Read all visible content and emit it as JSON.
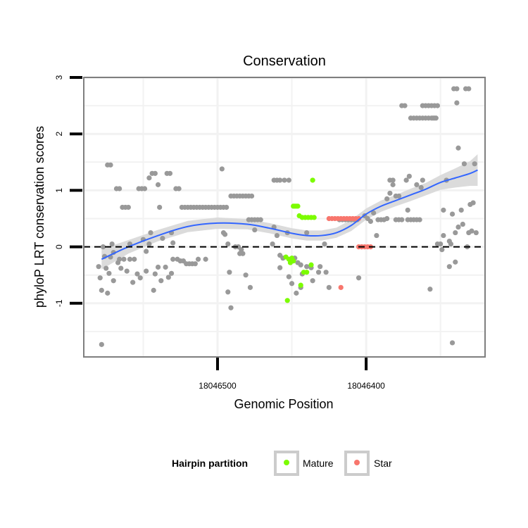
{
  "chart_data": {
    "type": "scatter",
    "title": "Conservation",
    "xlabel": "Genomic Position",
    "ylabel": "phyloP LRT conservation scores",
    "x_reversed": true,
    "xlim": [
      18046590,
      18046320
    ],
    "ylim": [
      -1.95,
      3.0
    ],
    "xticks": [
      {
        "value": 18046500,
        "label": "18046500"
      },
      {
        "value": 18046400,
        "label": "18046400"
      }
    ],
    "yticks": [
      {
        "value": -1,
        "label": "-1"
      },
      {
        "value": 0,
        "label": "0"
      },
      {
        "value": 1,
        "label": "1"
      },
      {
        "value": 2,
        "label": "2"
      },
      {
        "value": 3,
        "label": "3"
      }
    ],
    "reference_line": {
      "y": 0,
      "style": "dashed"
    },
    "legend": {
      "title": "Hairpin partition",
      "position": "bottom",
      "entries": [
        {
          "label": "Mature",
          "color": "#7cfc00"
        },
        {
          "label": "Star",
          "color": "#f8766d"
        }
      ]
    },
    "colors": {
      "other": "#999999",
      "Mature": "#7cfc00",
      "Star": "#f8766d",
      "smooth": "#3366ff",
      "band": "#d9d9d9"
    },
    "series": [
      {
        "name": "Other",
        "color": "#999999",
        "points": [
          [
            18046578,
            -1.73
          ],
          [
            18046580,
            -0.35
          ],
          [
            18046579,
            -0.55
          ],
          [
            18046578,
            -0.77
          ],
          [
            18046577,
            0.0
          ],
          [
            18046576,
            -0.17
          ],
          [
            18046575,
            -0.38
          ],
          [
            18046574,
            -0.82
          ],
          [
            18046574,
            1.45
          ],
          [
            18046572,
            1.45
          ],
          [
            18046573,
            -0.47
          ],
          [
            18046572,
            -0.18
          ],
          [
            18046571,
            0.05
          ],
          [
            18046570,
            -0.1
          ],
          [
            18046570,
            -0.6
          ],
          [
            18046568,
            1.03
          ],
          [
            18046566,
            1.03
          ],
          [
            18046567,
            -0.28
          ],
          [
            18046566,
            -0.22
          ],
          [
            18046565,
            -0.38
          ],
          [
            18046564,
            0.7
          ],
          [
            18046562,
            0.7
          ],
          [
            18046560,
            0.7
          ],
          [
            18046563,
            -0.22
          ],
          [
            18046561,
            -0.43
          ],
          [
            18046559,
            -0.22
          ],
          [
            18046559,
            0.05
          ],
          [
            18046557,
            -0.63
          ],
          [
            18046556,
            -0.22
          ],
          [
            18046554,
            -0.48
          ],
          [
            18046553,
            1.03
          ],
          [
            18046551,
            1.03
          ],
          [
            18046549,
            1.03
          ],
          [
            18046552,
            -0.55
          ],
          [
            18046550,
            0.13
          ],
          [
            18046548,
            -0.43
          ],
          [
            18046548,
            -0.08
          ],
          [
            18046546,
            0.05
          ],
          [
            18046546,
            1.22
          ],
          [
            18046544,
            1.3
          ],
          [
            18046542,
            1.3
          ],
          [
            18046545,
            0.25
          ],
          [
            18046543,
            -0.77
          ],
          [
            18046542,
            -0.48
          ],
          [
            18046540,
            1.1
          ],
          [
            18046540,
            -0.36
          ],
          [
            18046539,
            0.7
          ],
          [
            18046538,
            -0.6
          ],
          [
            18046537,
            0.15
          ],
          [
            18046535,
            -0.36
          ],
          [
            18046534,
            1.3
          ],
          [
            18046532,
            1.3
          ],
          [
            18046531,
            0.25
          ],
          [
            18046530,
            0.07
          ],
          [
            18046533,
            -0.54
          ],
          [
            18046531,
            -0.47
          ],
          [
            18046530,
            -0.22
          ],
          [
            18046528,
            1.03
          ],
          [
            18046526,
            1.03
          ],
          [
            18046527,
            -0.22
          ],
          [
            18046525,
            -0.25
          ],
          [
            18046523,
            -0.25
          ],
          [
            18046521,
            -0.3
          ],
          [
            18046519,
            -0.3
          ],
          [
            18046517,
            -0.3
          ],
          [
            18046524,
            0.7
          ],
          [
            18046522,
            0.7
          ],
          [
            18046520,
            0.7
          ],
          [
            18046518,
            0.7
          ],
          [
            18046516,
            0.7
          ],
          [
            18046514,
            0.7
          ],
          [
            18046512,
            0.7
          ],
          [
            18046510,
            0.7
          ],
          [
            18046508,
            0.7
          ],
          [
            18046506,
            0.7
          ],
          [
            18046504,
            0.7
          ],
          [
            18046502,
            0.7
          ],
          [
            18046500,
            0.7
          ],
          [
            18046498,
            0.7
          ],
          [
            18046496,
            0.7
          ],
          [
            18046494,
            0.7
          ],
          [
            18046515,
            -0.3
          ],
          [
            18046513,
            -0.22
          ],
          [
            18046508,
            -0.22
          ],
          [
            18046497,
            1.38
          ],
          [
            18046496,
            0.25
          ],
          [
            18046495,
            0.22
          ],
          [
            18046493,
            0.05
          ],
          [
            18046493,
            -0.8
          ],
          [
            18046492,
            -0.45
          ],
          [
            18046491,
            0.9
          ],
          [
            18046489,
            0.9
          ],
          [
            18046487,
            0.9
          ],
          [
            18046485,
            0.9
          ],
          [
            18046483,
            0.9
          ],
          [
            18046481,
            0.9
          ],
          [
            18046479,
            0.9
          ],
          [
            18046477,
            0.9
          ],
          [
            18046491,
            -1.08
          ],
          [
            18046488,
            0.0
          ],
          [
            18046486,
            0.0
          ],
          [
            18046484,
            -0.05
          ],
          [
            18046485,
            -0.12
          ],
          [
            18046483,
            -0.12
          ],
          [
            18046481,
            -0.5
          ],
          [
            18046479,
            0.48
          ],
          [
            18046477,
            0.48
          ],
          [
            18046475,
            0.48
          ],
          [
            18046473,
            0.48
          ],
          [
            18046471,
            0.48
          ],
          [
            18046478,
            -0.72
          ],
          [
            18046475,
            0.3
          ],
          [
            18046463,
            0.05
          ],
          [
            18046462,
            1.18
          ],
          [
            18046460,
            1.18
          ],
          [
            18046458,
            1.18
          ],
          [
            18046462,
            0.35
          ],
          [
            18046460,
            0.2
          ],
          [
            18046458,
            -0.15
          ],
          [
            18046456,
            -0.2
          ],
          [
            18046458,
            -0.37
          ],
          [
            18046455,
            1.18
          ],
          [
            18046452,
            1.18
          ],
          [
            18046453,
            0.25
          ],
          [
            18046452,
            -0.53
          ],
          [
            18046450,
            -0.65
          ],
          [
            18046448,
            -0.2
          ],
          [
            18046447,
            -0.82
          ],
          [
            18046446,
            -0.28
          ],
          [
            18046444,
            -0.32
          ],
          [
            18046443,
            -0.48
          ],
          [
            18046444,
            -0.72
          ],
          [
            18046440,
            0.25
          ],
          [
            18046440,
            -0.35
          ],
          [
            18046437,
            -0.37
          ],
          [
            18046436,
            -0.6
          ],
          [
            18046432,
            -0.45
          ],
          [
            18046431,
            -0.35
          ],
          [
            18046428,
            0.05
          ],
          [
            18046427,
            -0.45
          ],
          [
            18046425,
            -0.72
          ],
          [
            18046418,
            0.48
          ],
          [
            18046416,
            0.48
          ],
          [
            18046414,
            0.48
          ],
          [
            18046412,
            0.48
          ],
          [
            18046410,
            0.48
          ],
          [
            18046408,
            0.48
          ],
          [
            18046406,
            0.48
          ],
          [
            18046405,
            -0.55
          ],
          [
            18046403,
            0.0
          ],
          [
            18046401,
            0.55
          ],
          [
            18046399,
            0.5
          ],
          [
            18046397,
            0.45
          ],
          [
            18046395,
            0.6
          ],
          [
            18046393,
            0.2
          ],
          [
            18046392,
            0.48
          ],
          [
            18046390,
            0.48
          ],
          [
            18046388,
            0.48
          ],
          [
            18046386,
            0.5
          ],
          [
            18046386,
            0.85
          ],
          [
            18046384,
            0.95
          ],
          [
            18046384,
            1.18
          ],
          [
            18046382,
            1.18
          ],
          [
            18046382,
            1.1
          ],
          [
            18046380,
            0.48
          ],
          [
            18046380,
            0.9
          ],
          [
            18046378,
            0.9
          ],
          [
            18046378,
            0.48
          ],
          [
            18046376,
            0.48
          ],
          [
            18046376,
            2.5
          ],
          [
            18046374,
            2.5
          ],
          [
            18046373,
            1.18
          ],
          [
            18046372,
            0.48
          ],
          [
            18046372,
            0.65
          ],
          [
            18046370,
            2.28
          ],
          [
            18046368,
            2.28
          ],
          [
            18046366,
            2.28
          ],
          [
            18046364,
            2.28
          ],
          [
            18046362,
            2.28
          ],
          [
            18046360,
            2.28
          ],
          [
            18046358,
            2.28
          ],
          [
            18046356,
            2.28
          ],
          [
            18046354,
            2.28
          ],
          [
            18046371,
            1.25
          ],
          [
            18046370,
            0.48
          ],
          [
            18046368,
            0.48
          ],
          [
            18046366,
            0.48
          ],
          [
            18046364,
            0.48
          ],
          [
            18046366,
            1.1
          ],
          [
            18046363,
            1.05
          ],
          [
            18046362,
            1.18
          ],
          [
            18046362,
            2.5
          ],
          [
            18046360,
            2.5
          ],
          [
            18046358,
            2.5
          ],
          [
            18046356,
            2.5
          ],
          [
            18046354,
            2.5
          ],
          [
            18046352,
            2.5
          ],
          [
            18046357,
            -0.75
          ],
          [
            18046355,
            2.28
          ],
          [
            18046353,
            2.28
          ],
          [
            18046352,
            0.05
          ],
          [
            18046350,
            0.05
          ],
          [
            18046349,
            -0.05
          ],
          [
            18046348,
            0.65
          ],
          [
            18046348,
            0.2
          ],
          [
            18046346,
            1.18
          ],
          [
            18046344,
            -0.35
          ],
          [
            18046343,
            0.05
          ],
          [
            18046344,
            0.1
          ],
          [
            18046342,
            0.58
          ],
          [
            18046341,
            2.8
          ],
          [
            18046339,
            2.8
          ],
          [
            18046342,
            -1.7
          ],
          [
            18046340,
            -0.27
          ],
          [
            18046340,
            0.25
          ],
          [
            18046339,
            2.55
          ],
          [
            18046338,
            0.35
          ],
          [
            18046338,
            1.75
          ],
          [
            18046336,
            0.65
          ],
          [
            18046335,
            0.4
          ],
          [
            18046334,
            1.47
          ],
          [
            18046333,
            2.8
          ],
          [
            18046331,
            2.8
          ],
          [
            18046332,
            0.0
          ],
          [
            18046331,
            0.25
          ],
          [
            18046330,
            0.75
          ],
          [
            18046329,
            0.28
          ],
          [
            18046328,
            0.78
          ],
          [
            18046327,
            1.47
          ],
          [
            18046326,
            0.25
          ]
        ]
      },
      {
        "name": "Mature",
        "color": "#7cfc00",
        "points": [
          [
            18046453,
            -0.95
          ],
          [
            18046454,
            -0.18
          ],
          [
            18046452,
            -0.22
          ],
          [
            18046451,
            -0.28
          ],
          [
            18046450,
            -0.2
          ],
          [
            18046449,
            -0.25
          ],
          [
            18046449,
            0.72
          ],
          [
            18046448,
            0.72
          ],
          [
            18046447,
            0.72
          ],
          [
            18046446,
            0.72
          ],
          [
            18046445,
            0.55
          ],
          [
            18046443,
            0.52
          ],
          [
            18046441,
            0.52
          ],
          [
            18046439,
            0.52
          ],
          [
            18046437,
            0.52
          ],
          [
            18046435,
            0.52
          ],
          [
            18046444,
            -0.68
          ],
          [
            18046442,
            -0.45
          ],
          [
            18046440,
            -0.45
          ],
          [
            18046437,
            -0.32
          ],
          [
            18046436,
            1.18
          ]
        ]
      },
      {
        "name": "Star",
        "color": "#f8766d",
        "points": [
          [
            18046425,
            0.5
          ],
          [
            18046423,
            0.5
          ],
          [
            18046421,
            0.5
          ],
          [
            18046419,
            0.5
          ],
          [
            18046417,
            0.5
          ],
          [
            18046415,
            0.5
          ],
          [
            18046413,
            0.5
          ],
          [
            18046411,
            0.5
          ],
          [
            18046409,
            0.5
          ],
          [
            18046407,
            0.5
          ],
          [
            18046405,
            0.5
          ],
          [
            18046417,
            -0.72
          ],
          [
            18046405,
            0.0
          ],
          [
            18046403,
            0.0
          ],
          [
            18046401,
            0.0
          ],
          [
            18046399,
            0.0
          ],
          [
            18046397,
            0.0
          ]
        ]
      }
    ],
    "smooth": {
      "method": "loess",
      "x": [
        18046578,
        18046560,
        18046540,
        18046520,
        18046500,
        18046480,
        18046465,
        18046450,
        18046440,
        18046430,
        18046420,
        18046410,
        18046400,
        18046390,
        18046380,
        18046370,
        18046360,
        18046350,
        18046340,
        18046330,
        18046325
      ],
      "y": [
        -0.22,
        0.0,
        0.2,
        0.36,
        0.42,
        0.4,
        0.33,
        0.24,
        0.2,
        0.2,
        0.25,
        0.38,
        0.58,
        0.72,
        0.82,
        0.92,
        1.02,
        1.14,
        1.22,
        1.3,
        1.36
      ],
      "se": [
        0.18,
        0.12,
        0.1,
        0.1,
        0.1,
        0.09,
        0.09,
        0.09,
        0.09,
        0.09,
        0.09,
        0.1,
        0.1,
        0.1,
        0.1,
        0.11,
        0.11,
        0.13,
        0.17,
        0.22,
        0.28
      ]
    }
  }
}
